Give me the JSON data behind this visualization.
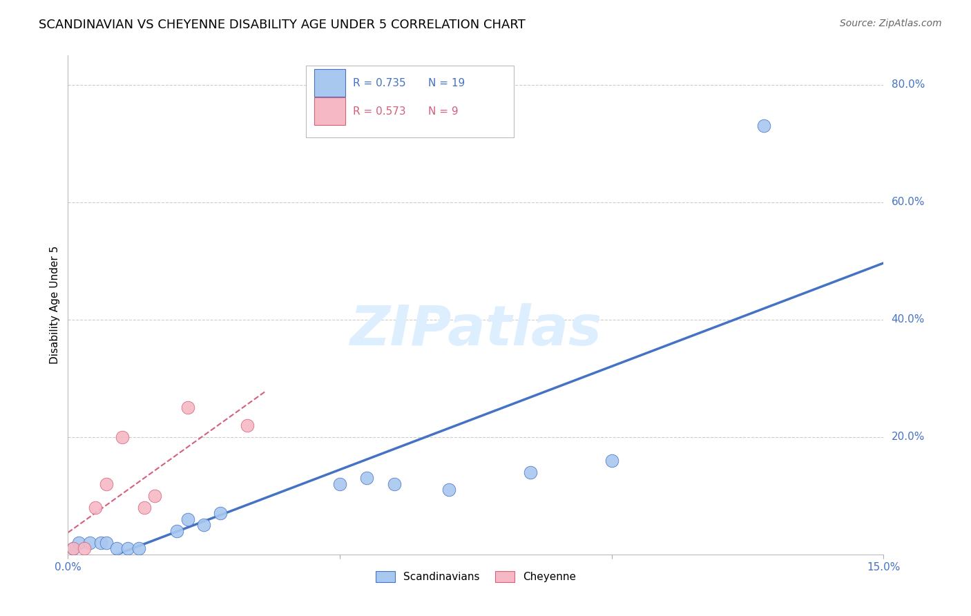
{
  "title": "SCANDINAVIAN VS CHEYENNE DISABILITY AGE UNDER 5 CORRELATION CHART",
  "source": "Source: ZipAtlas.com",
  "ylabel": "Disability Age Under 5",
  "r_scand": 0.735,
  "n_scand": 19,
  "r_chey": 0.573,
  "n_chey": 9,
  "xlim": [
    0.0,
    0.15
  ],
  "ylim": [
    0.0,
    0.85
  ],
  "ytick_vals": [
    0.2,
    0.4,
    0.6,
    0.8
  ],
  "ytick_labels": [
    "20.0%",
    "40.0%",
    "60.0%",
    "80.0%"
  ],
  "grid_color": "#cccccc",
  "background_color": "#ffffff",
  "scand_color": "#a8c8f0",
  "scand_line_color": "#4472c4",
  "chey_color": "#f5b8c4",
  "chey_line_color": "#d4607a",
  "scand_x": [
    0.001,
    0.002,
    0.004,
    0.006,
    0.007,
    0.009,
    0.011,
    0.013,
    0.02,
    0.022,
    0.025,
    0.028,
    0.05,
    0.055,
    0.06,
    0.07,
    0.085,
    0.1,
    0.128
  ],
  "scand_y": [
    0.01,
    0.02,
    0.02,
    0.02,
    0.02,
    0.01,
    0.01,
    0.01,
    0.04,
    0.06,
    0.05,
    0.07,
    0.12,
    0.13,
    0.12,
    0.11,
    0.14,
    0.16,
    0.73
  ],
  "chey_x": [
    0.001,
    0.003,
    0.005,
    0.007,
    0.01,
    0.014,
    0.016,
    0.022,
    0.033
  ],
  "chey_y": [
    0.01,
    0.01,
    0.08,
    0.12,
    0.2,
    0.08,
    0.1,
    0.25,
    0.22
  ],
  "watermark_text": "ZIPatlas",
  "watermark_color": "#ddeeff",
  "title_fontsize": 13,
  "axis_label_fontsize": 11,
  "tick_label_fontsize": 11,
  "legend_fontsize": 11
}
